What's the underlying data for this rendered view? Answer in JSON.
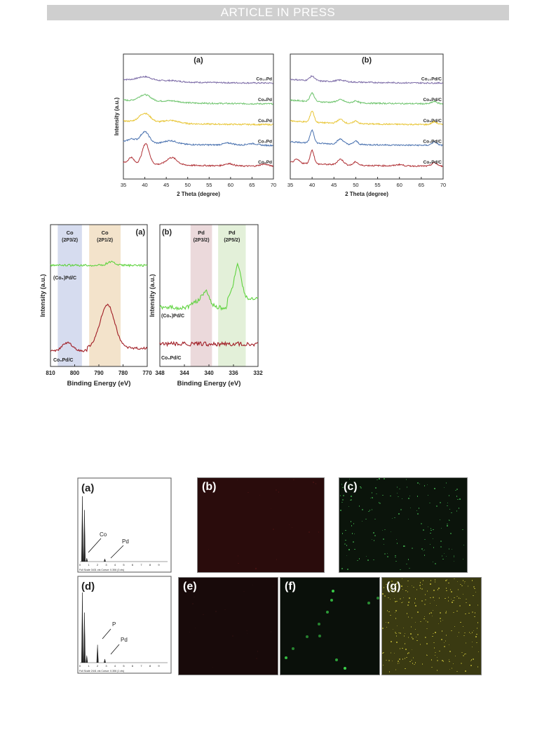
{
  "header": {
    "banner": "ARTICLE IN PRESS"
  },
  "colors": {
    "purple": "#7b6aa6",
    "green": "#6cc36b",
    "yellow": "#e8c534",
    "blue": "#4a72b0",
    "red": "#b03136",
    "xps_green": "#5fd33f",
    "xps_red": "#a01c24",
    "band_blue": "#d6dcef",
    "band_orange": "#f3e3cb",
    "band_pink": "#ebd9db",
    "band_green": "#e3f0d9"
  },
  "chart_data": [
    {
      "id": "xrd-a",
      "type": "line",
      "panel_label": "(a)",
      "xlabel": "2 Theta (degree)",
      "ylabel": "Intensity (a.u.)",
      "xlim": [
        35,
        70
      ],
      "xticks": [
        "35",
        "40",
        "45",
        "50",
        "55",
        "60",
        "65",
        "70"
      ],
      "series": [
        {
          "name": "Co₁₀Pd",
          "offset": 4,
          "peaks": [
            [
              40,
              0.35,
              1.6
            ],
            [
              46,
              0.1,
              2
            ]
          ]
        },
        {
          "name": "Co₈Pd",
          "offset": 3,
          "peaks": [
            [
              40,
              0.6,
              1.4
            ],
            [
              46,
              0.15,
              2
            ]
          ]
        },
        {
          "name": "Co₆Pd",
          "offset": 2,
          "peaks": [
            [
              40,
              0.8,
              1.3
            ],
            [
              46,
              0.25,
              1.8
            ]
          ]
        },
        {
          "name": "Co₄Pd",
          "offset": 1,
          "peaks": [
            [
              37,
              0.3,
              0.9
            ],
            [
              40,
              1.0,
              1.0
            ],
            [
              46,
              0.3,
              1.5
            ],
            [
              59.5,
              0.18,
              1.2
            ],
            [
              65,
              0.15,
              1.2
            ]
          ]
        },
        {
          "name": "Co₂Pd",
          "offset": 0,
          "peaks": [
            [
              36.8,
              0.5,
              0.6
            ],
            [
              40.2,
              1.8,
              0.8
            ],
            [
              46.3,
              0.65,
              1.2
            ],
            [
              59.6,
              0.2,
              1.0
            ],
            [
              67.8,
              0.18,
              0.9
            ]
          ]
        }
      ]
    },
    {
      "id": "xrd-b",
      "type": "line",
      "panel_label": "(b)",
      "xlabel": "2 Theta (degree)",
      "ylabel": "",
      "xlim": [
        35,
        70
      ],
      "xticks": [
        "35",
        "40",
        "45",
        "50",
        "55",
        "60",
        "65",
        "70"
      ],
      "series": [
        {
          "name": "Co₁₀Pd/C",
          "offset": 4,
          "peaks": [
            [
              40,
              0.4,
              0.6
            ],
            [
              46.5,
              0.15,
              1
            ]
          ]
        },
        {
          "name": "Co₈Pd/C",
          "offset": 3,
          "peaks": [
            [
              40,
              0.75,
              0.5
            ],
            [
              46.5,
              0.25,
              0.8
            ],
            [
              50,
              0.2,
              0.5
            ],
            [
              68,
              0.2,
              0.6
            ]
          ]
        },
        {
          "name": "Co₆Pd/C",
          "offset": 2,
          "peaks": [
            [
              40,
              1.0,
              0.45
            ],
            [
              46.5,
              0.35,
              0.7
            ],
            [
              50,
              0.25,
              0.5
            ],
            [
              68,
              0.25,
              0.6
            ]
          ]
        },
        {
          "name": "Co₄Pd/C",
          "offset": 1,
          "peaks": [
            [
              40,
              1.15,
              0.45
            ],
            [
              46.5,
              0.45,
              0.7
            ],
            [
              50,
              0.3,
              0.5
            ],
            [
              68,
              0.3,
              0.6
            ]
          ]
        },
        {
          "name": "Co₂Pd/C",
          "offset": 0,
          "peaks": [
            [
              36.5,
              0.3,
              0.6
            ],
            [
              40,
              1.2,
              0.45
            ],
            [
              46.5,
              0.5,
              0.7
            ],
            [
              50,
              0.3,
              0.5
            ],
            [
              60,
              0.12,
              0.8
            ],
            [
              68,
              0.3,
              0.6
            ]
          ]
        }
      ]
    },
    {
      "id": "xps-a",
      "type": "line",
      "panel_label": "(a)",
      "xlabel": "Binding Energy (eV)",
      "ylabel": "Intensity (a.u.)",
      "xlim": [
        810,
        770
      ],
      "xticks": [
        "810",
        "800",
        "790",
        "780",
        "770"
      ],
      "bands": [
        {
          "label": "Co",
          "sub": "(2P3/2)",
          "from": 807,
          "to": 797
        },
        {
          "label": "Co",
          "sub": "(2P1/2)",
          "from": 794,
          "to": 781
        }
      ],
      "series": [
        {
          "name": "(Co₆)Pd/C",
          "curve": "flat_co"
        },
        {
          "name": "Co₆Pd/C",
          "curve": "co_peak"
        }
      ]
    },
    {
      "id": "xps-b",
      "type": "line",
      "panel_label": "(b)",
      "xlabel": "Binding Energy (eV)",
      "ylabel": "Intensity (a.u.)",
      "xlim": [
        348,
        332
      ],
      "xticks": [
        "348",
        "344",
        "340",
        "336",
        "332"
      ],
      "bands": [
        {
          "label": "Pd",
          "sub": "(2P3/2)",
          "from": 343,
          "to": 339.5
        },
        {
          "label": "Pd",
          "sub": "(2P5/2)",
          "from": 338.5,
          "to": 334
        }
      ],
      "series": [
        {
          "name": "(Co₆)Pd/C",
          "curve": "pd_peak"
        },
        {
          "name": "Co₆Pd/C",
          "curve": "flat_pd"
        }
      ]
    },
    {
      "id": "edx-a",
      "type": "bar",
      "panel_label": "(a)",
      "annotations": [
        "Co",
        "Pd"
      ],
      "footer": "Full Scale 3431 cts Cursor: 0.306 (3 cts)",
      "xlim": [
        0,
        10
      ],
      "xticks": [
        "0",
        "1",
        "2",
        "3",
        "4",
        "5",
        "6",
        "7",
        "8",
        "9"
      ],
      "peaks": [
        [
          0.28,
          0.95
        ],
        [
          0.52,
          0.75
        ],
        [
          0.78,
          0.05
        ],
        [
          2.84,
          0.04
        ]
      ]
    },
    {
      "id": "edx-d",
      "type": "bar",
      "panel_label": "(d)",
      "annotations": [
        "P",
        "Pd"
      ],
      "footer": "Full Scale 2441 cts Cursor: 0.306 (1 cts)",
      "xlim": [
        0,
        10
      ],
      "xticks": [
        "0",
        "1",
        "2",
        "3",
        "4",
        "5",
        "6",
        "7",
        "8",
        "9"
      ],
      "peaks": [
        [
          0.28,
          0.98
        ],
        [
          0.52,
          0.7
        ],
        [
          0.78,
          0.1
        ],
        [
          2.01,
          0.25
        ],
        [
          2.84,
          0.05
        ]
      ]
    }
  ],
  "maps": [
    {
      "id": "b",
      "label": "(b)",
      "tint": "#2a0c0c",
      "dots": "#4a1414"
    },
    {
      "id": "c",
      "label": "(c)",
      "tint": "#0b140b",
      "dots": "#3ea84a"
    },
    {
      "id": "e",
      "label": "(e)",
      "tint": "#180a0a",
      "dots": "#2a0f0f"
    },
    {
      "id": "f",
      "label": "(f)",
      "tint": "#0a100a",
      "dots": "#3bd44a"
    },
    {
      "id": "g",
      "label": "(g)",
      "tint": "#3a3a12",
      "dots": "#b9b236"
    }
  ]
}
